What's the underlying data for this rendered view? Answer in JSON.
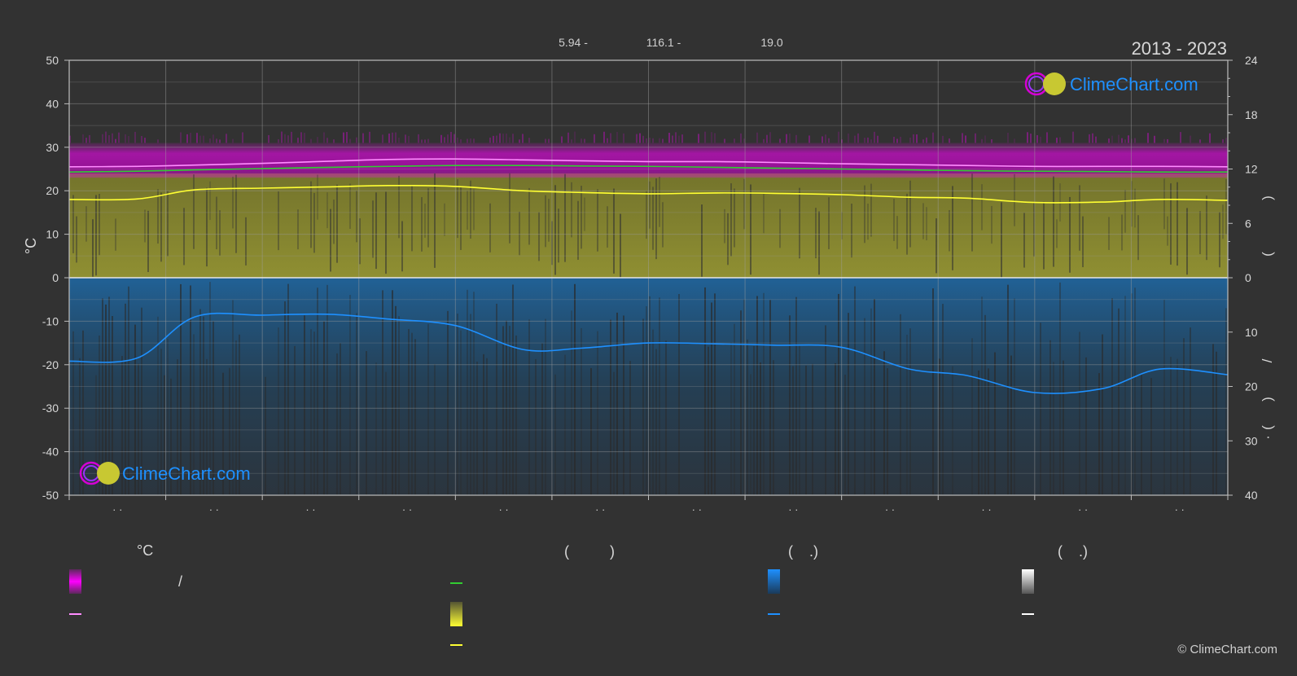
{
  "header": {
    "period": "2013 - 2023",
    "summary": [
      "5.94 -",
      "116.1 -",
      "19.0"
    ]
  },
  "brand": {
    "name": "ClimeChart.com",
    "copyright": "© ClimeChart.com",
    "color": "#1e90ff"
  },
  "legend": {
    "temp_unit": "°C",
    "col2_paren": "(          )",
    "col3_paren": "(    .)",
    "col4_paren": "(    .)",
    "slash": "/"
  },
  "colors": {
    "background": "#323232",
    "magenta": "#ff00ff",
    "mean_temp_line": "#ff8cff",
    "green": "#32cd32",
    "yellow": "#ffff33",
    "blue": "#1e90ff",
    "white": "#ffffff"
  },
  "chart_data": {
    "type": "line",
    "title": "",
    "ylabel": "°C",
    "ylim": [
      -50,
      50
    ],
    "yticks": [
      50,
      40,
      30,
      20,
      10,
      0,
      -10,
      -20,
      -30,
      -40,
      -50
    ],
    "y2_upper_ticks": [
      24,
      18,
      12,
      6,
      0
    ],
    "y2_lower_ticks": [
      10,
      20,
      30,
      40
    ],
    "y2_label_glyphs": [
      ")",
      "(",
      "/",
      ")",
      "(",
      "·"
    ],
    "month_labels": [
      "· ·",
      "· ·",
      "· ·",
      "· ·",
      "· ·",
      "· ·",
      "· ·",
      "· ·",
      "· ·",
      "· ·",
      "· ·",
      "· ·"
    ],
    "grid": true,
    "x": [
      0.0,
      0.7,
      1.3,
      2.0,
      2.7,
      3.3,
      4.0,
      4.7,
      5.3,
      6.0,
      6.7,
      7.3,
      8.0,
      8.7,
      9.3,
      10.0,
      10.7,
      11.3,
      12.0
    ],
    "series": [
      {
        "key": "mean_max",
        "color": "#ff8cff",
        "values": [
          25.5,
          25.6,
          25.9,
          26.3,
          26.8,
          27.2,
          27.3,
          27.1,
          26.9,
          26.7,
          26.7,
          26.5,
          26.2,
          26.0,
          25.8,
          25.6,
          25.6,
          25.6,
          25.5
        ]
      },
      {
        "key": "mean_min",
        "color": "#32cd32",
        "values": [
          24.3,
          24.5,
          24.8,
          25.1,
          25.4,
          25.6,
          25.8,
          25.8,
          25.7,
          25.6,
          25.4,
          25.2,
          25.0,
          24.8,
          24.6,
          24.5,
          24.4,
          24.3,
          24.3
        ]
      },
      {
        "key": "sunshine_line",
        "color": "#ffff33",
        "values": [
          18.0,
          18.1,
          20.2,
          20.6,
          20.9,
          21.2,
          21.0,
          20.0,
          19.6,
          19.3,
          19.5,
          19.4,
          19.1,
          18.5,
          18.3,
          17.3,
          17.4,
          18.0,
          17.8
        ]
      },
      {
        "key": "precip_line",
        "color": "#1e90ff",
        "values": [
          -19.2,
          -18.5,
          -9.0,
          -8.6,
          -8.4,
          -9.5,
          -11.0,
          -16.5,
          -16.2,
          -15.0,
          -15.2,
          -15.5,
          -16.0,
          -21.0,
          -22.5,
          -26.4,
          -25.5,
          -21.0,
          -22.3
        ]
      }
    ],
    "bands": [
      {
        "key": "temp_range",
        "color": "#ff00ff",
        "lower": 23.0,
        "upper": 31.0
      },
      {
        "key": "sunshine",
        "color": "#9a9a2c",
        "lower": 0,
        "upper": 24.0
      },
      {
        "key": "precipitation",
        "color": "#1e5a88",
        "lower": -50,
        "upper": 0
      }
    ]
  }
}
